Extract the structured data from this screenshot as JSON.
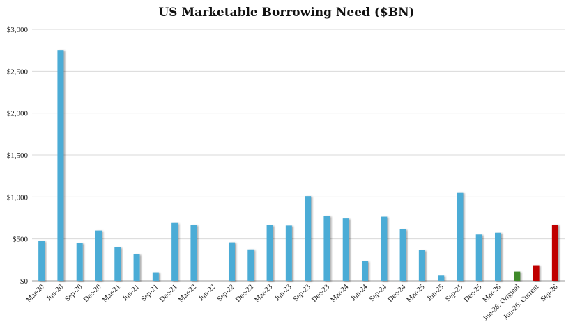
{
  "chart_data": {
    "type": "bar",
    "title": "US Marketable Borrowing Need ($BN)",
    "xlabel": "",
    "ylabel": "",
    "ylim": [
      0,
      3000
    ],
    "yticks": [
      0,
      500,
      1000,
      1500,
      2000,
      2500,
      3000
    ],
    "ytick_labels": [
      "$0",
      "$500",
      "$1,000",
      "$1,500",
      "$2,000",
      "$2,500",
      "$3,000"
    ],
    "grid": true,
    "legend": "none",
    "categories": [
      "Mar-20",
      "Jun-20",
      "Sep-20",
      "Dec-20",
      "Mar-21",
      "Jun-21",
      "Sep-21",
      "Dec-21",
      "Mar-22",
      "Jun-22",
      "Sep-22",
      "Dec-22",
      "Mar-23",
      "Jun-23",
      "Sep-23",
      "Dec-23",
      "Mar-24",
      "Jun-24",
      "Sep-24",
      "Dec-24",
      "Mar-25",
      "Jun-25",
      "Sep-25",
      "Dec-25",
      "Mar-26",
      "Jun-26: Original",
      "Jun-26: Current",
      "Sep-26"
    ],
    "values": [
      477,
      2750,
      451,
      600,
      401,
      319,
      103,
      690,
      667,
      0,
      459,
      375,
      663,
      660,
      1010,
      776,
      745,
      236,
      766,
      616,
      365,
      64,
      1055,
      553,
      574,
      111,
      186,
      671
    ],
    "colors": [
      "#4bacd6",
      "#4bacd6",
      "#4bacd6",
      "#4bacd6",
      "#4bacd6",
      "#4bacd6",
      "#4bacd6",
      "#4bacd6",
      "#4bacd6",
      "#4bacd6",
      "#4bacd6",
      "#4bacd6",
      "#4bacd6",
      "#4bacd6",
      "#4bacd6",
      "#4bacd6",
      "#4bacd6",
      "#4bacd6",
      "#4bacd6",
      "#4bacd6",
      "#4bacd6",
      "#4bacd6",
      "#4bacd6",
      "#4bacd6",
      "#4bacd6",
      "#3f8a2a",
      "#c00000",
      "#c00000"
    ]
  }
}
